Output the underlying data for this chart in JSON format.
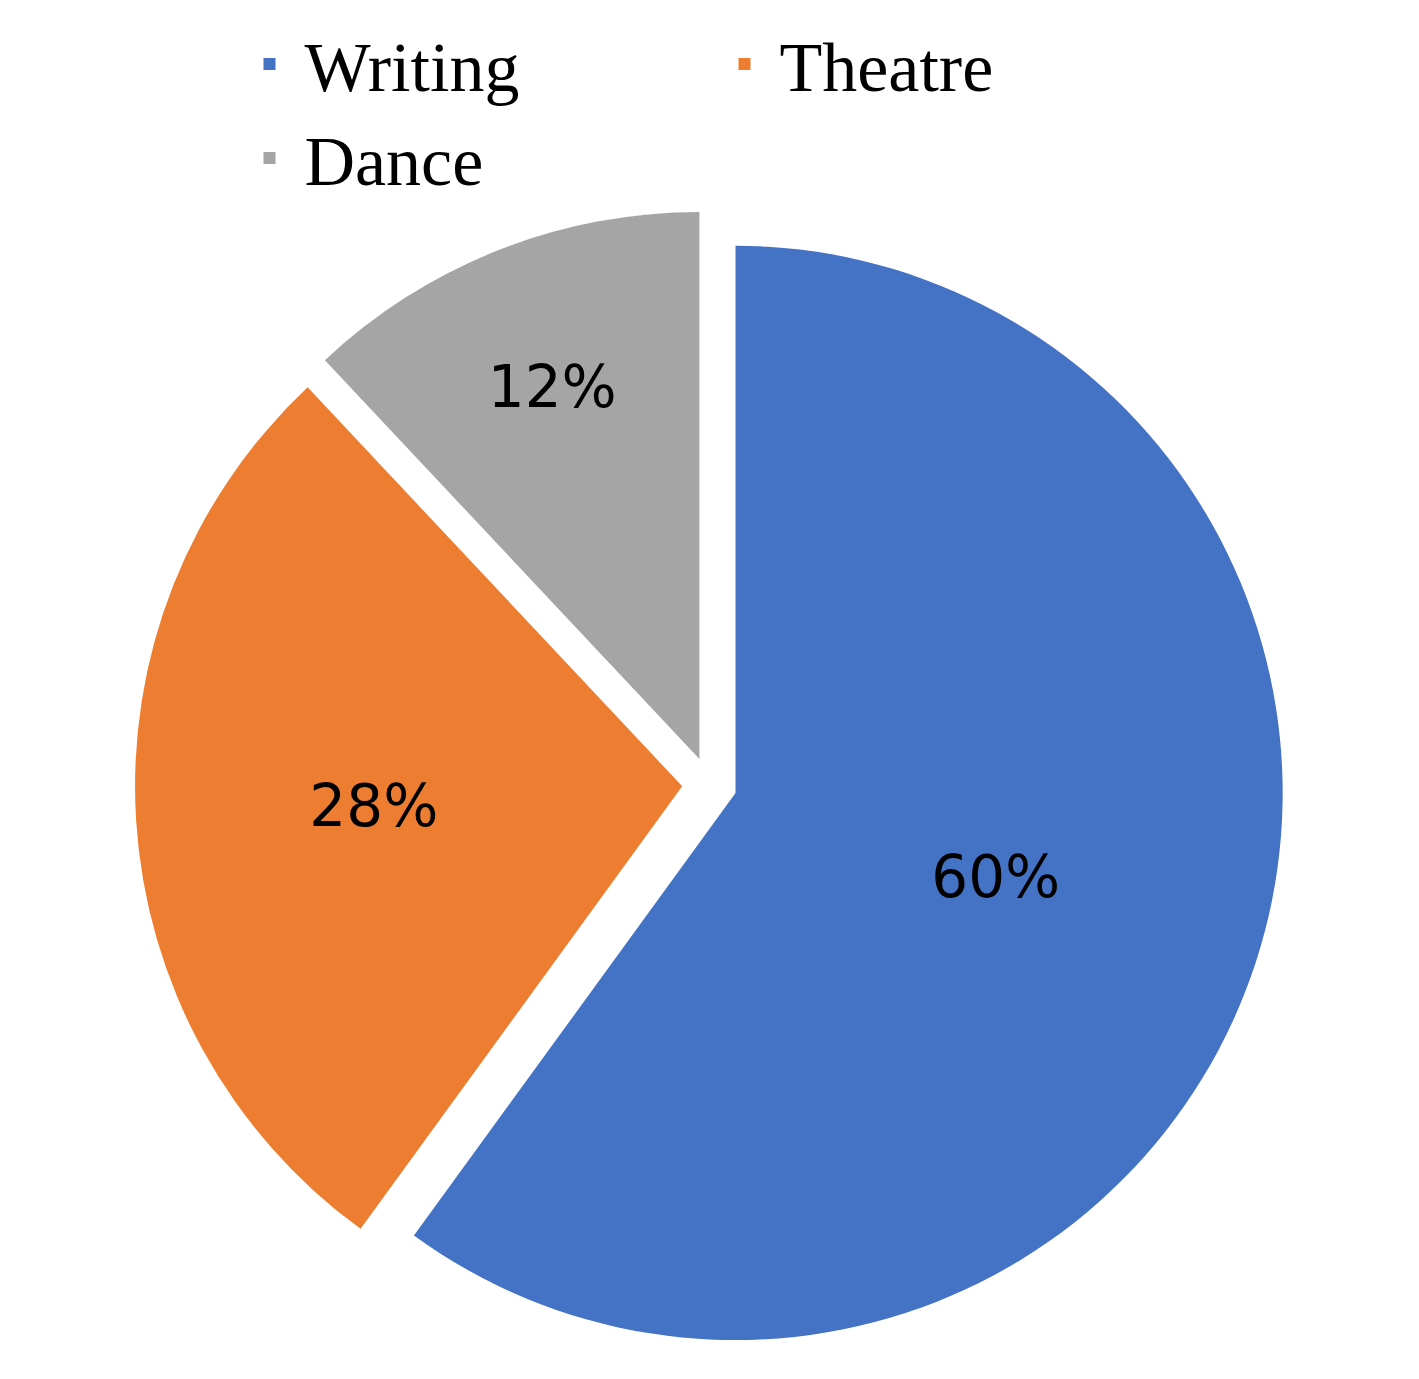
{
  "chart_data": {
    "type": "pie",
    "categories": [
      "Writing",
      "Theatre",
      "Dance"
    ],
    "values": [
      60,
      28,
      12
    ],
    "value_labels": [
      "60%",
      "28%",
      "12%"
    ],
    "colors": [
      "#4472c4",
      "#ed7d31",
      "#a5a5a5"
    ],
    "legend": "top"
  }
}
